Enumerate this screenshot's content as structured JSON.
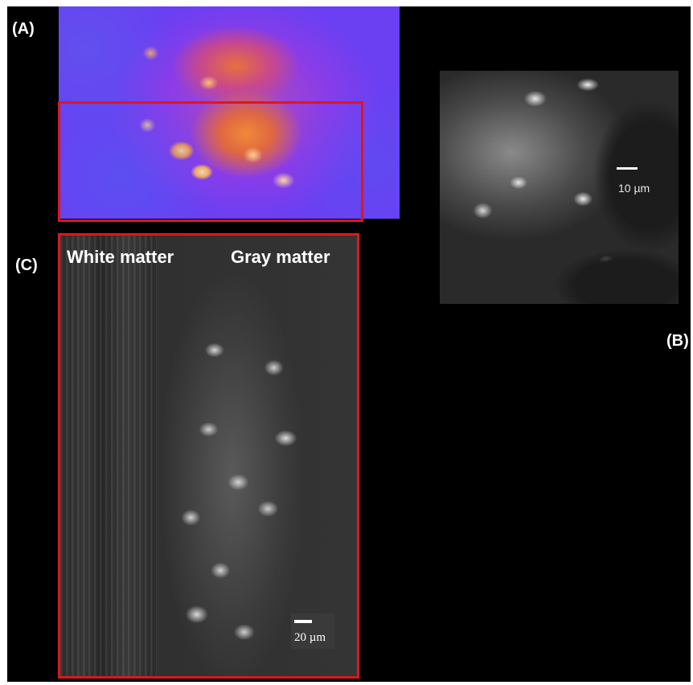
{
  "panel_labels": {
    "a": "(A)",
    "b": "(B)",
    "c": "(C)"
  },
  "panel_b": {
    "scale_bar_label": "10 µm"
  },
  "panel_c": {
    "region_left": "White matter",
    "region_right": "Gray matter",
    "scale_bar_label": "20 µm"
  },
  "colors": {
    "background": "#000000",
    "roi_outline": "#e0161b",
    "label_text": "#ffffff"
  }
}
